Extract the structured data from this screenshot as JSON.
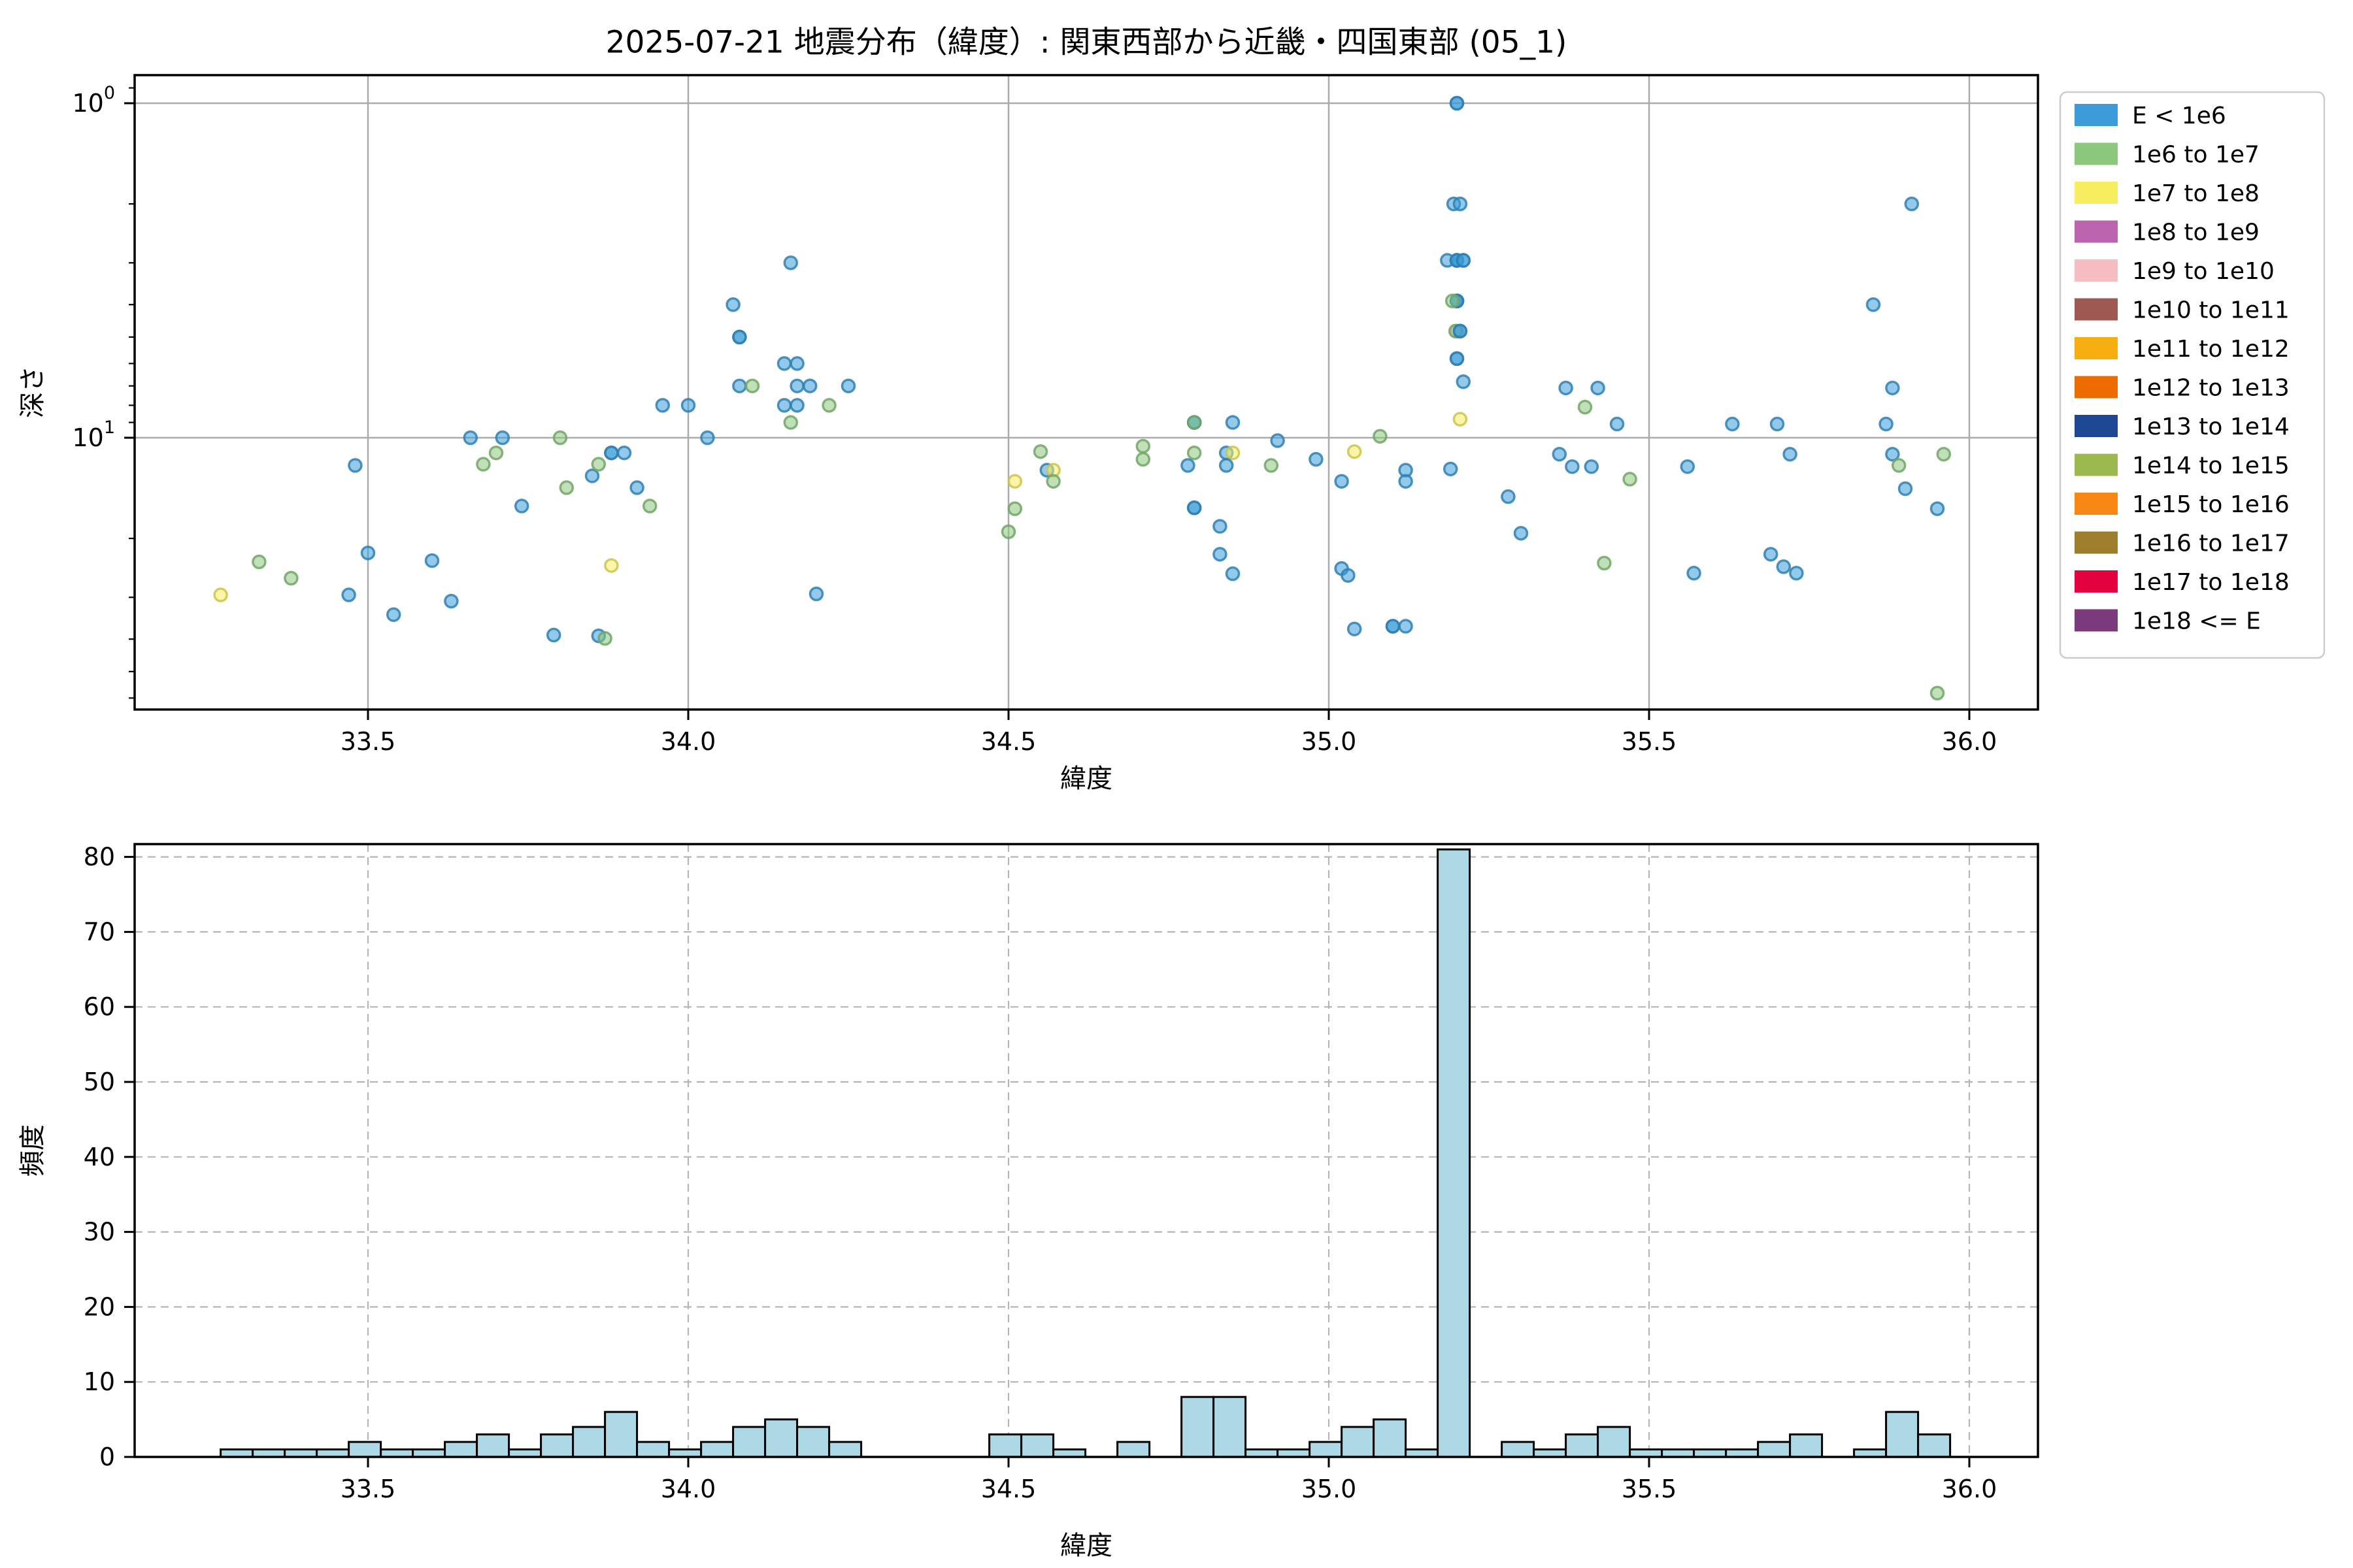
{
  "title": "2025-07-21 地震分布（緯度）: 関東西部から近畿・四国東部 (05_1)",
  "legend": {
    "entries": [
      {
        "label": "E < 1e6",
        "color": "#3B9CD9"
      },
      {
        "label": "1e6 to 1e7",
        "color": "#8CC87D"
      },
      {
        "label": "1e7 to 1e8",
        "color": "#F7EF5F"
      },
      {
        "label": "1e8 to 1e9",
        "color": "#BC64AE"
      },
      {
        "label": "1e9 to 1e10",
        "color": "#F6BEC1"
      },
      {
        "label": "1e10 to 1e11",
        "color": "#9E5A52"
      },
      {
        "label": "1e11 to 1e12",
        "color": "#F6AD0F"
      },
      {
        "label": "1e12 to 1e13",
        "color": "#ED6C02"
      },
      {
        "label": "1e13 to 1e14",
        "color": "#1D4693"
      },
      {
        "label": "1e14 to 1e15",
        "color": "#9CB950"
      },
      {
        "label": "1e15 to 1e16",
        "color": "#F68712"
      },
      {
        "label": "1e16 to 1e17",
        "color": "#9D7E2C"
      },
      {
        "label": "1e17 to 1e18",
        "color": "#E3013F"
      },
      {
        "label": "1e18 <= E",
        "color": "#7B3B7C"
      }
    ]
  },
  "chart_data": [
    {
      "type": "scatter",
      "title": "2025-07-21 地震分布（緯度）: 関東西部から近畿・四国東部 (05_1)",
      "xlabel": "緯度",
      "ylabel": "深さ",
      "x_ticks": [
        33.5,
        34.0,
        34.5,
        35.0,
        35.5,
        36.0
      ],
      "xlim": [
        33.136,
        36.107
      ],
      "y_scale": "log-inverted",
      "ylim_depth_top_to_bottom": [
        0.82,
        65
      ],
      "y_major_ticks": [
        {
          "v": 1,
          "base": "10",
          "exp": "0"
        },
        {
          "v": 10,
          "base": "10",
          "exp": "1"
        }
      ],
      "y_minor_ticks": [
        0.9,
        2,
        3,
        4,
        5,
        6,
        7,
        8,
        9,
        20,
        30,
        40,
        50,
        60
      ],
      "grid": "solid",
      "note": "points = [lat, depth_km, legend_category_index, overlap_count(optional)]",
      "points": [
        [
          33.27,
          29.5,
          2
        ],
        [
          33.33,
          23.5,
          1
        ],
        [
          33.38,
          26.3,
          1
        ],
        [
          33.47,
          29.5,
          0
        ],
        [
          33.48,
          12.1,
          0
        ],
        [
          33.5,
          22.1,
          0
        ],
        [
          33.54,
          33.8,
          0
        ],
        [
          33.6,
          23.3,
          0
        ],
        [
          33.63,
          30.8,
          0
        ],
        [
          33.66,
          10.0,
          0
        ],
        [
          33.68,
          12.0,
          1
        ],
        [
          33.7,
          11.1,
          1
        ],
        [
          33.71,
          10.0,
          0
        ],
        [
          33.74,
          16.0,
          0
        ],
        [
          33.79,
          38.9,
          0
        ],
        [
          33.8,
          10.0,
          1
        ],
        [
          33.81,
          14.1,
          1
        ],
        [
          33.85,
          13.0,
          0
        ],
        [
          33.86,
          39.1,
          0
        ],
        [
          33.87,
          39.8,
          1
        ],
        [
          33.86,
          12.0,
          1
        ],
        [
          33.88,
          11.1,
          0,
          2
        ],
        [
          33.9,
          11.1,
          0
        ],
        [
          33.88,
          24.1,
          2
        ],
        [
          33.92,
          14.1,
          0
        ],
        [
          33.94,
          16.0,
          1
        ],
        [
          33.96,
          8.0,
          0
        ],
        [
          34.0,
          8.0,
          0
        ],
        [
          34.03,
          10.0,
          0
        ],
        [
          34.07,
          4.0,
          0
        ],
        [
          34.08,
          5.0,
          0,
          2
        ],
        [
          34.08,
          7.0,
          0
        ],
        [
          34.1,
          7.0,
          1
        ],
        [
          34.15,
          8.0,
          0
        ],
        [
          34.17,
          8.0,
          0
        ],
        [
          34.16,
          3.0,
          0
        ],
        [
          34.15,
          6.0,
          0
        ],
        [
          34.17,
          6.0,
          0
        ],
        [
          34.17,
          7.0,
          0
        ],
        [
          34.19,
          7.0,
          0
        ],
        [
          34.25,
          7.0,
          0
        ],
        [
          34.22,
          8.0,
          1
        ],
        [
          34.16,
          9.0,
          1
        ],
        [
          34.2,
          29.3,
          0
        ],
        [
          34.55,
          11.0,
          1
        ],
        [
          34.56,
          12.5,
          0
        ],
        [
          34.57,
          12.5,
          2
        ],
        [
          34.51,
          13.5,
          2
        ],
        [
          34.57,
          13.5,
          1
        ],
        [
          34.51,
          16.3,
          1
        ],
        [
          34.5,
          19.1,
          1
        ],
        [
          34.71,
          10.6,
          1
        ],
        [
          34.71,
          11.6,
          1
        ],
        [
          34.79,
          9.0,
          0,
          2
        ],
        [
          34.79,
          9.0,
          1
        ],
        [
          34.85,
          9.0,
          0
        ],
        [
          34.79,
          11.1,
          1
        ],
        [
          34.78,
          12.1,
          0
        ],
        [
          34.84,
          11.1,
          0
        ],
        [
          34.85,
          11.1,
          2
        ],
        [
          34.84,
          12.1,
          0
        ],
        [
          34.92,
          10.2,
          0
        ],
        [
          34.91,
          12.1,
          1
        ],
        [
          34.98,
          11.6,
          0
        ],
        [
          34.79,
          16.2,
          0,
          2
        ],
        [
          34.83,
          18.4,
          0
        ],
        [
          34.83,
          22.3,
          0
        ],
        [
          34.85,
          25.5,
          0
        ],
        [
          35.02,
          13.5,
          0
        ],
        [
          35.02,
          24.6,
          0
        ],
        [
          35.03,
          25.8,
          0
        ],
        [
          35.04,
          37.3,
          0
        ],
        [
          35.1,
          36.6,
          0,
          2
        ],
        [
          35.12,
          36.6,
          0
        ],
        [
          35.12,
          12.5,
          0
        ],
        [
          35.12,
          13.5,
          0
        ],
        [
          35.04,
          11.0,
          2
        ],
        [
          35.08,
          9.9,
          1
        ],
        [
          35.2,
          1.0,
          0,
          2
        ],
        [
          35.195,
          2.0,
          0
        ],
        [
          35.205,
          2.0,
          0
        ],
        [
          35.185,
          2.95,
          0
        ],
        [
          35.2,
          2.95,
          0,
          4
        ],
        [
          35.21,
          2.95,
          0,
          2
        ],
        [
          35.2,
          3.9,
          0,
          4
        ],
        [
          35.193,
          3.9,
          1
        ],
        [
          35.2,
          4.8,
          4
        ],
        [
          35.198,
          4.8,
          1
        ],
        [
          35.205,
          4.8,
          0,
          2
        ],
        [
          35.2,
          5.8,
          0,
          2
        ],
        [
          35.21,
          6.8,
          0
        ],
        [
          35.205,
          8.8,
          2
        ],
        [
          35.19,
          12.4,
          0
        ],
        [
          35.28,
          15.0,
          0
        ],
        [
          35.3,
          19.3,
          0
        ],
        [
          35.37,
          7.1,
          0
        ],
        [
          35.42,
          7.1,
          0
        ],
        [
          35.4,
          8.1,
          1
        ],
        [
          35.45,
          9.1,
          0
        ],
        [
          35.36,
          11.2,
          0
        ],
        [
          35.38,
          12.2,
          0
        ],
        [
          35.41,
          12.2,
          0
        ],
        [
          35.43,
          23.7,
          1
        ],
        [
          35.47,
          13.3,
          1
        ],
        [
          35.56,
          12.2,
          0
        ],
        [
          35.57,
          25.4,
          0
        ],
        [
          35.63,
          9.1,
          0
        ],
        [
          35.7,
          9.1,
          0
        ],
        [
          35.72,
          11.2,
          0
        ],
        [
          35.69,
          22.3,
          0
        ],
        [
          35.71,
          24.3,
          0
        ],
        [
          35.73,
          25.4,
          0
        ],
        [
          35.91,
          2.0,
          0
        ],
        [
          35.85,
          4.0,
          0
        ],
        [
          35.88,
          7.1,
          0
        ],
        [
          35.87,
          9.1,
          0
        ],
        [
          35.88,
          11.2,
          0
        ],
        [
          35.89,
          12.1,
          1
        ],
        [
          35.9,
          14.2,
          0
        ],
        [
          35.95,
          16.3,
          0
        ],
        [
          35.96,
          11.2,
          1
        ],
        [
          35.95,
          58.0,
          1
        ]
      ]
    },
    {
      "type": "bar",
      "subtype": "histogram",
      "xlabel": "緯度",
      "ylabel": "頻度",
      "x_ticks": [
        33.5,
        34.0,
        34.5,
        35.0,
        35.5,
        36.0
      ],
      "y_ticks": [
        0,
        10,
        20,
        30,
        40,
        50,
        60,
        70,
        80
      ],
      "ylim": [
        0,
        84
      ],
      "grid": "dashed",
      "bar_fill": "#ADD8E6",
      "bar_edge": "#000000",
      "bin_start": 33.27,
      "bin_width": 0.05,
      "counts": [
        1,
        1,
        1,
        1,
        2,
        1,
        1,
        2,
        3,
        1,
        3,
        4,
        6,
        2,
        1,
        2,
        4,
        5,
        4,
        2,
        0,
        0,
        0,
        0,
        3,
        3,
        1,
        0,
        2,
        0,
        8,
        8,
        1,
        1,
        2,
        4,
        5,
        1,
        81,
        0,
        2,
        1,
        3,
        4,
        1,
        1,
        1,
        1,
        2,
        3,
        0,
        1,
        6,
        3
      ]
    }
  ]
}
